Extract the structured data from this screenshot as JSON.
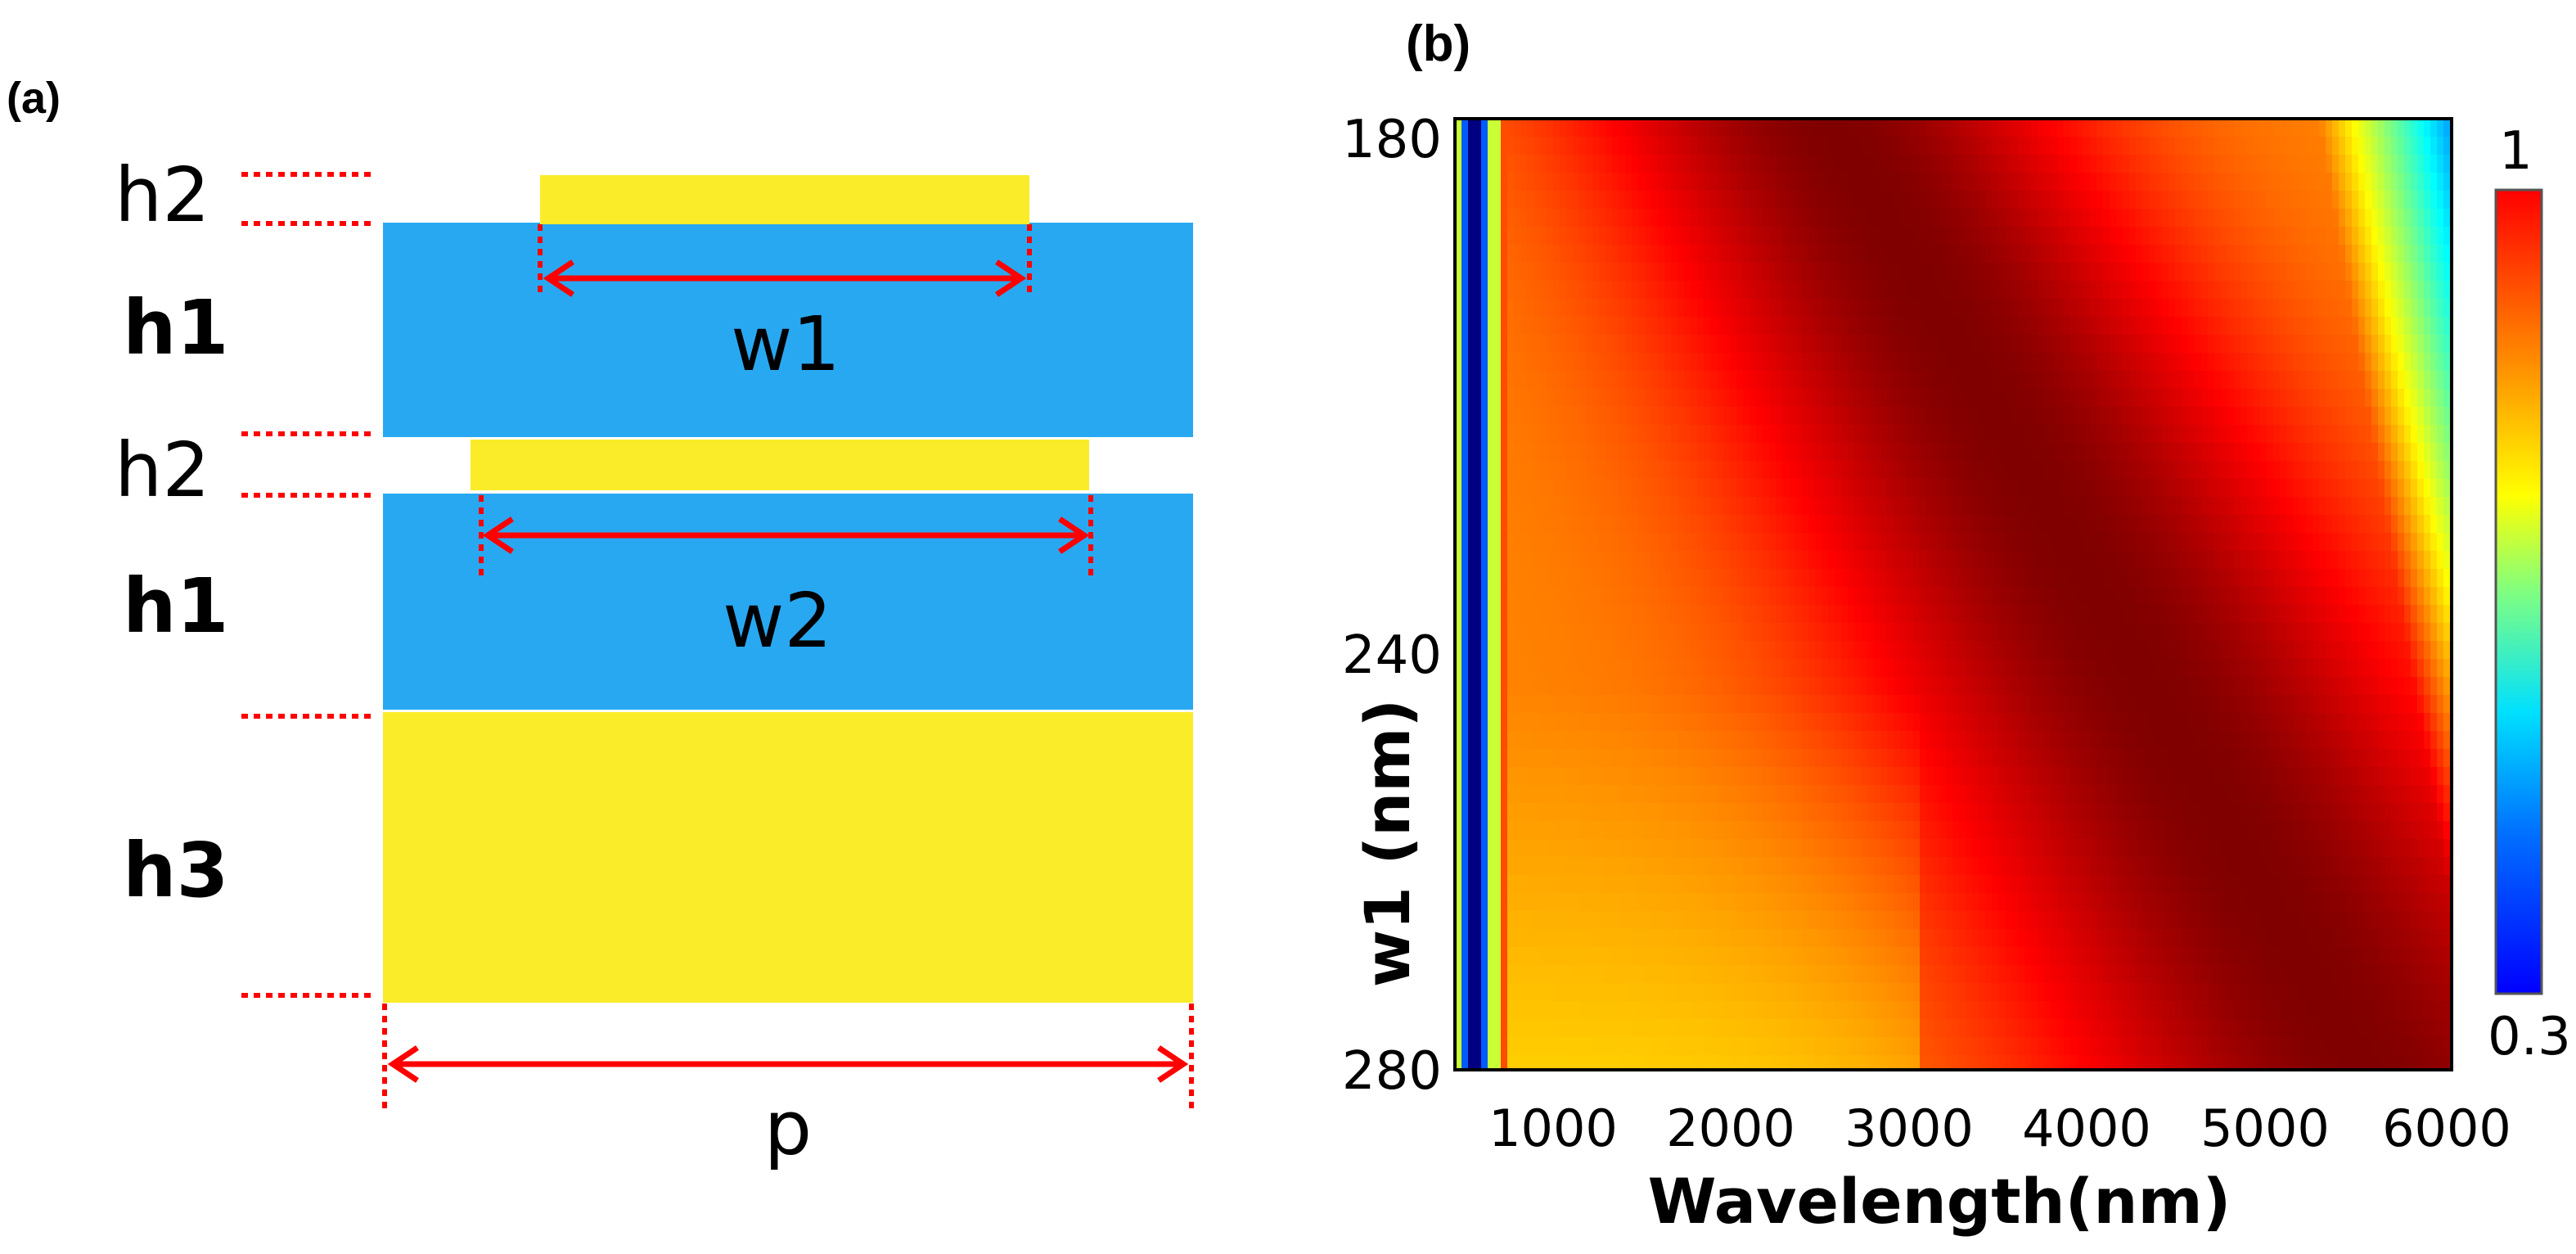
{
  "panel_a": {
    "label": "(a)",
    "layer_labels": [
      "h2",
      "h1",
      "h2",
      "h1",
      "h3"
    ],
    "dimension_labels": {
      "w1": "w1",
      "w2": "w2",
      "p": "p"
    },
    "colors": {
      "dielectric": "#29a8f2",
      "metal": "#fbec2a",
      "marker": "#ff0000"
    }
  },
  "panel_b": {
    "label": "(b)"
  },
  "chart_data": {
    "type": "heatmap",
    "title": "",
    "xlabel": "Wavelength(nm)",
    "ylabel": "w1 (nm)",
    "x_range": [
      400,
      6000
    ],
    "y_range": [
      180,
      280
    ],
    "x_ticks": [
      "1000",
      "2000",
      "3000",
      "4000",
      "5000",
      "6000"
    ],
    "y_ticks": [
      {
        "value": "180",
        "color": "#000000"
      },
      {
        "value": "240",
        "color": "#ff0000"
      },
      {
        "value": "280",
        "color": "#000000"
      }
    ],
    "colorbar": {
      "min": 0.3,
      "max": 1,
      "min_label": "0.3",
      "max_label": "1",
      "colormap": "jet"
    },
    "value_description": "Absorption-like map: low (~0.3) narrow band near 500 nm; high (~1) red band shifting from ~2500 nm at w1=180 to ~5500 nm at w1=280; falls to ~0.5 beyond ~5600 nm at small w1"
  }
}
